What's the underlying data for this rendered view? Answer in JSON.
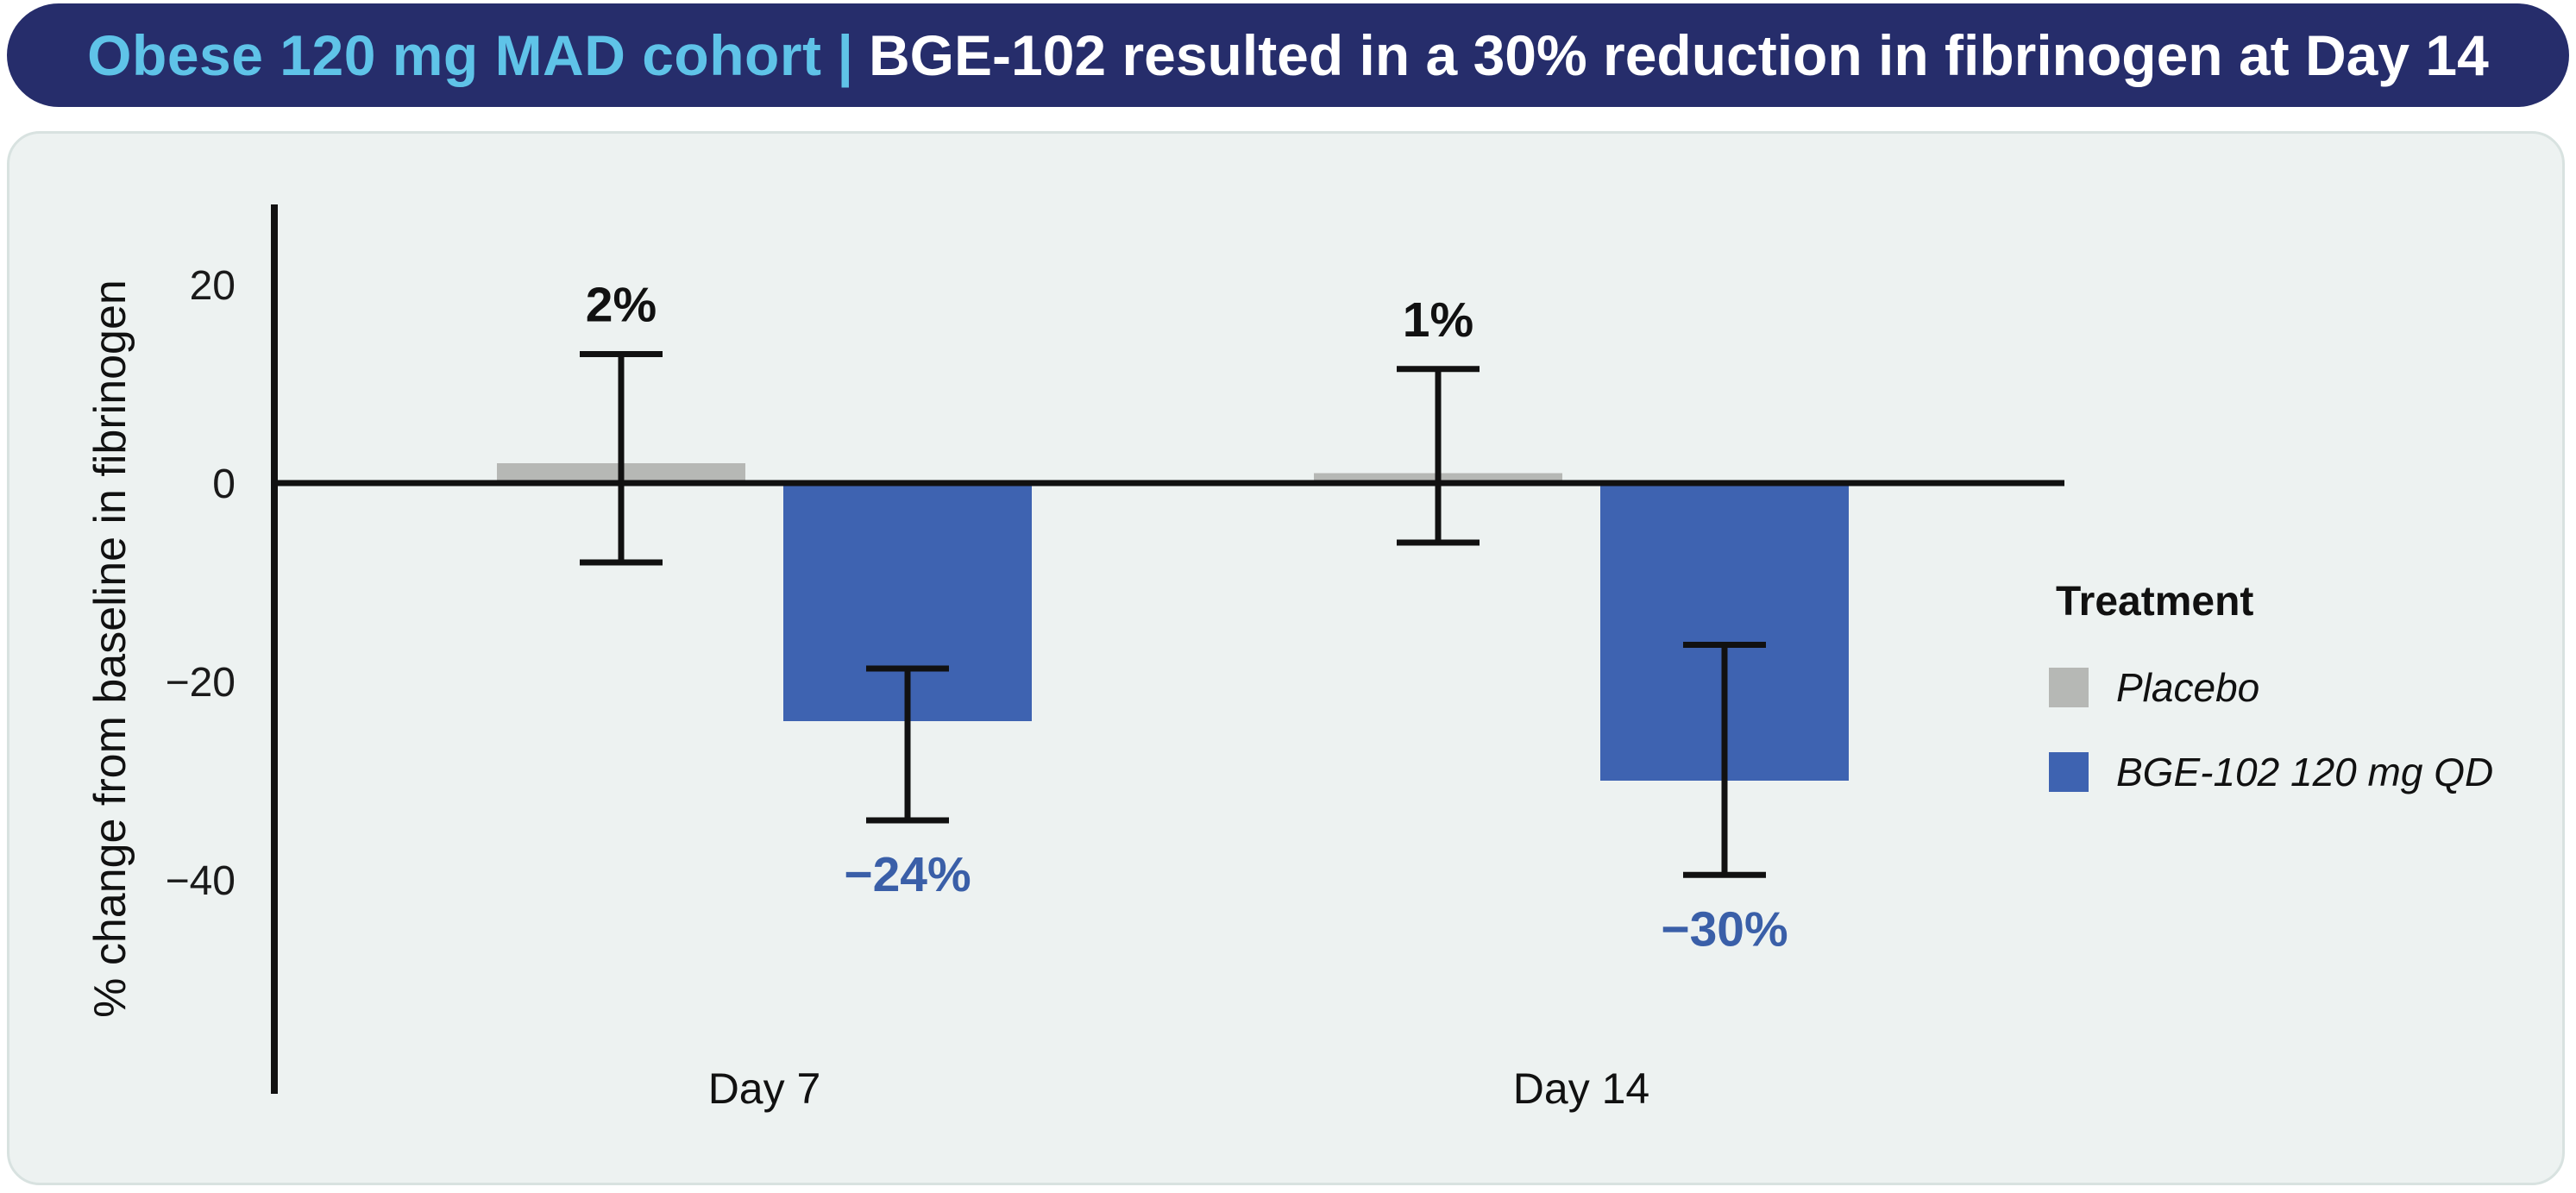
{
  "banner": {
    "cohort_label": "Obese 120 mg MAD cohort",
    "separator": "|",
    "headline": "BGE-102 resulted in a 30% reduction in fibrinogen at Day 14",
    "bg_color": "#262d6b",
    "cohort_color": "#5fc3e8",
    "headline_color": "#ffffff"
  },
  "panel": {
    "bg_color": "#edf2f1",
    "border_color": "#d8e2e0"
  },
  "chart_data": {
    "type": "bar",
    "title": "",
    "ylabel": "% change from baseline in fibrinogen",
    "categories": [
      "Day 7",
      "Day 14"
    ],
    "series": [
      {
        "name": "Placebo",
        "color": "#b6b8b5",
        "values": [
          2,
          1
        ],
        "error_high": [
          13,
          11.5
        ],
        "error_low": [
          -8,
          -6
        ],
        "value_labels": [
          "2%",
          "1%"
        ],
        "label_color": "#111111"
      },
      {
        "name": "BGE-102 120 mg QD",
        "color": "#3e63b1",
        "values": [
          -24,
          -30
        ],
        "error_high": [
          -18.7,
          -16.3
        ],
        "error_low": [
          -34,
          -39.5
        ],
        "value_labels": [
          "−24%",
          "−30%"
        ],
        "label_color": "#3a5fa8"
      }
    ],
    "yticks": [
      20,
      0,
      -20,
      -40
    ],
    "ylim": [
      -61,
      28
    ],
    "grid": false,
    "legend": {
      "title": "Treatment",
      "position": "right"
    },
    "axis_color": "#111111"
  }
}
